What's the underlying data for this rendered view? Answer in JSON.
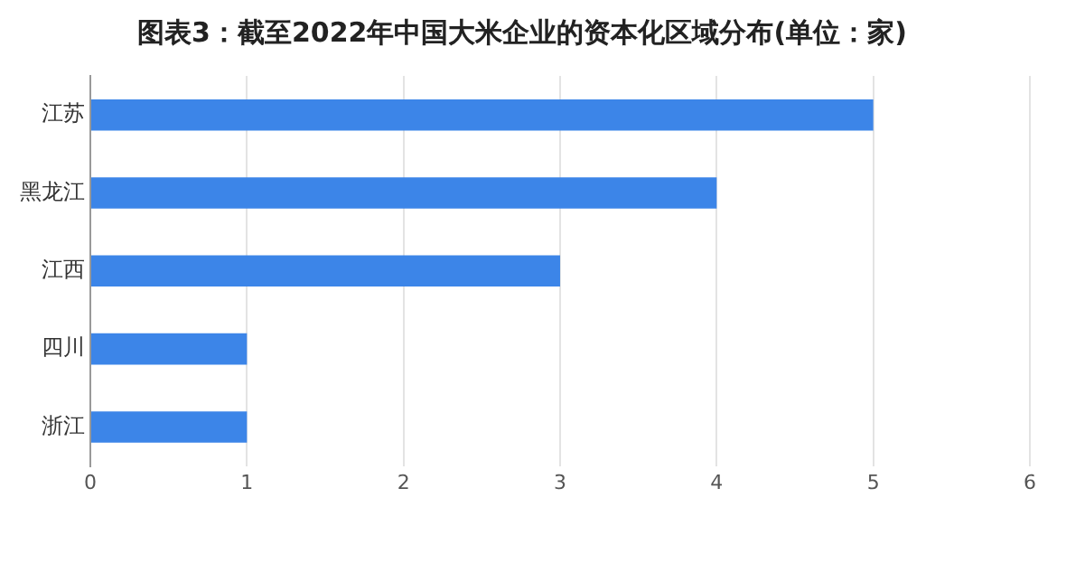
{
  "chart_data": {
    "type": "bar",
    "title": "图表3：截至2022年中国大米企业的资本化区域分布(单位：家)",
    "orientation": "horizontal",
    "categories": [
      "江苏",
      "黑龙江",
      "江西",
      "四川",
      "浙江"
    ],
    "values": [
      5,
      4,
      3,
      1,
      1
    ],
    "color": "#3c85e8",
    "xlim": [
      0,
      6
    ],
    "xticks": [
      0,
      1,
      2,
      3,
      4,
      5,
      6
    ],
    "grid": "x",
    "legend": false
  }
}
